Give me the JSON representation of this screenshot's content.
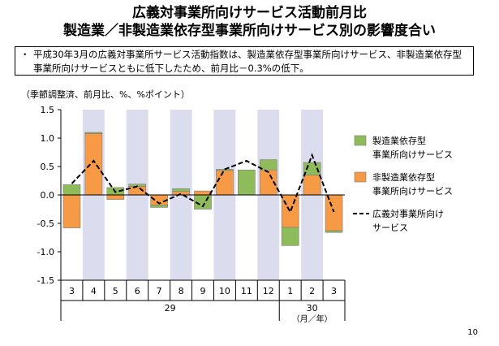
{
  "title_line1": "広義対事業所向けサービス活動前月比",
  "title_line2": "製造業／非製造業依存型事業所向けサービス別の影響度合い",
  "note": {
    "bullet": "・",
    "text": "平成30年3月の広義対事業所サービス活動指数は、製造業依存型事業所向けサービス、非製造業依存型事業所向けサービスともに低下したため、前月比－0.3%の低下。"
  },
  "unit_label": "（季節調整済、前月比、%、%ポイント）",
  "page_number": "10",
  "colors": {
    "manufacturing": "#8fbc5a",
    "non_manufacturing": "#f79a46",
    "line": "#000000",
    "shade": "#dcdcef",
    "bar_border": "#7a7a7a"
  },
  "chart_data": {
    "type": "bar",
    "stacked": true,
    "categories": [
      "3",
      "4",
      "5",
      "6",
      "7",
      "8",
      "9",
      "10",
      "11",
      "12",
      "1",
      "2",
      "3"
    ],
    "year_labels": [
      {
        "label": "29",
        "from": 0,
        "to": 9
      },
      {
        "label": "30",
        "from": 10,
        "to": 12
      }
    ],
    "x_unit_label": "（月／年）",
    "ylim": [
      -1.5,
      1.5
    ],
    "yticks": [
      1.5,
      1.0,
      0.5,
      0.0,
      -0.5,
      -1.0,
      -1.5
    ],
    "ytick_labels": [
      "1.5",
      "1.0",
      "0.5",
      "0.0",
      "-0.5",
      "-1.0",
      "-1.5"
    ],
    "shaded_categories": [
      1,
      3,
      5,
      7,
      9,
      11
    ],
    "series": [
      {
        "name": "製造業依存型事業所向けサービス",
        "legend_lines": [
          "製造業依存型",
          "事業所向けサービス"
        ],
        "type": "bar",
        "values": [
          0.18,
          0.02,
          0.13,
          0.04,
          -0.04,
          0.05,
          -0.25,
          0.02,
          0.44,
          0.18,
          -0.32,
          0.22,
          -0.03
        ]
      },
      {
        "name": "非製造業依存型事業所向けサービス",
        "legend_lines": [
          "非製造業依存型",
          "事業所向けサービス"
        ],
        "type": "bar",
        "values": [
          -0.58,
          1.08,
          -0.08,
          0.15,
          -0.18,
          0.06,
          0.07,
          0.43,
          0.0,
          0.44,
          -0.57,
          0.35,
          -0.63
        ]
      },
      {
        "name": "広義対事業所向けサービス",
        "legend_lines": [
          "広義対事業所向け",
          "サービス"
        ],
        "type": "line",
        "style": "dashed",
        "values": [
          0.2,
          0.6,
          0.05,
          0.15,
          -0.15,
          0.02,
          -0.2,
          0.45,
          0.6,
          0.4,
          -0.3,
          0.7,
          -0.3
        ]
      }
    ]
  }
}
